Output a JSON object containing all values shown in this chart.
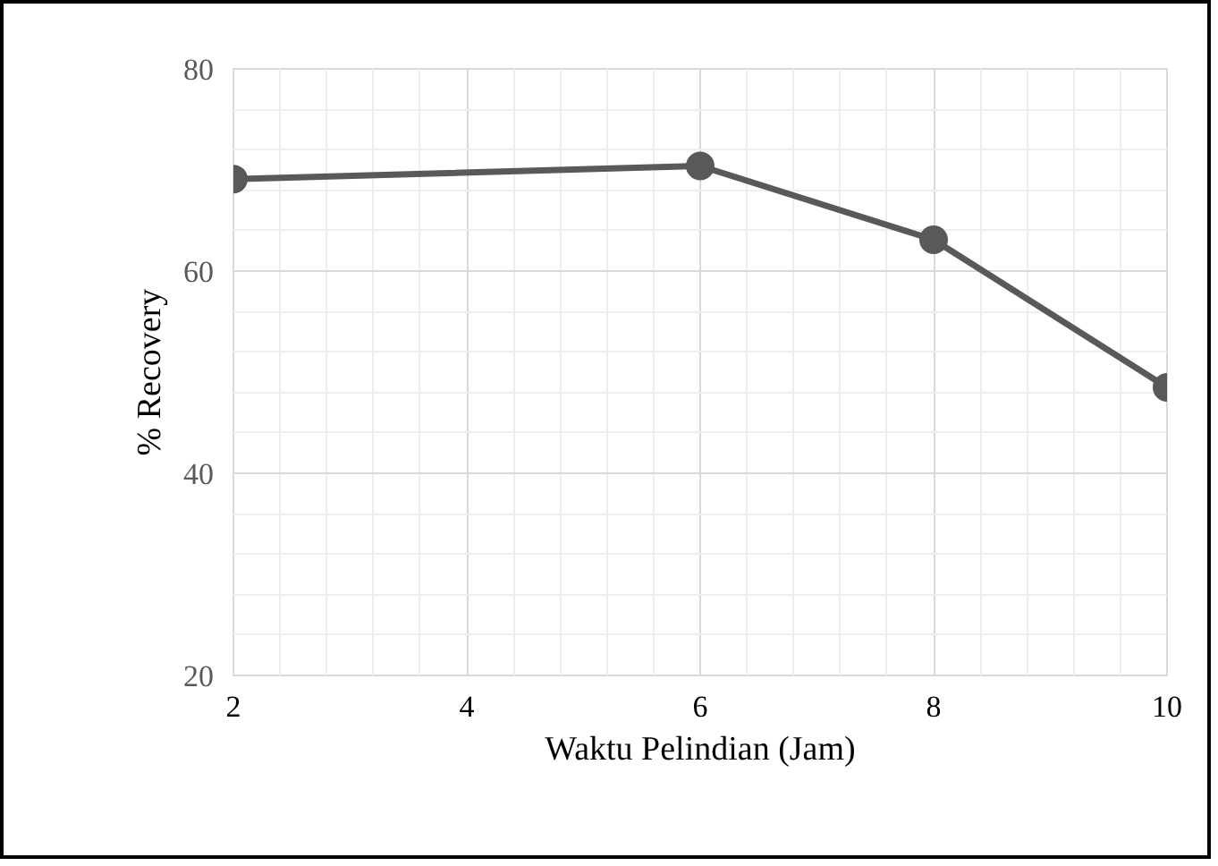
{
  "chart_data": {
    "type": "line",
    "xlabel": "Waktu Pelindian (Jam)",
    "ylabel": "% Recovery",
    "x": [
      2,
      6,
      8,
      10
    ],
    "series": [
      {
        "color": "#595959",
        "values": [
          69.1,
          70.4,
          63.1,
          48.5
        ]
      }
    ],
    "xlim": [
      2,
      10
    ],
    "xticks": [
      2,
      4,
      6,
      8,
      10
    ],
    "ylim": [
      20,
      80
    ],
    "yticks": [
      20,
      40,
      60,
      80
    ],
    "grid": true,
    "marker": "circle",
    "line_style": "solid"
  }
}
